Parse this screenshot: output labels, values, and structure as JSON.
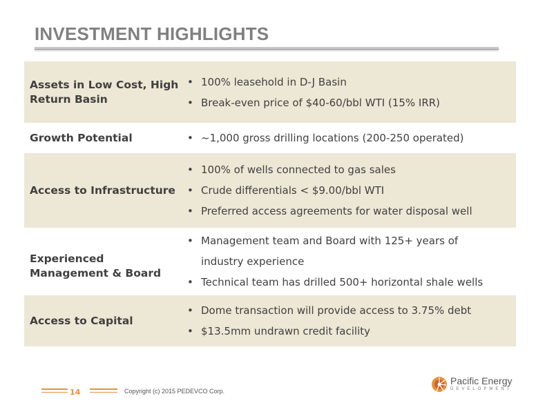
{
  "title": "INVESTMENT HIGHLIGHTS",
  "rows": [
    {
      "label": "Assets in Low Cost, High Return Basin",
      "bullets": [
        "100% leasehold in D-J Basin",
        "Break-even price of $40-60/bbl WTI (15% IRR)"
      ]
    },
    {
      "label": "Growth Potential",
      "bullets": [
        "~1,000 gross drilling locations (200-250 operated)"
      ]
    },
    {
      "label": "Access to Infrastructure",
      "bullets": [
        "100% of wells connected to gas sales",
        "Crude differentials < $9.00/bbl WTI",
        "Preferred access agreements for water disposal well"
      ]
    },
    {
      "label": "Experienced Management & Board",
      "bullets": [
        "Management team and Board with 125+ years of industry experience",
        "Technical team has drilled 500+ horizontal shale wells"
      ]
    },
    {
      "label": "Access to Capital",
      "bullets": [
        "Dome transaction will provide access to 3.75% debt",
        "$13.5mm undrawn credit facility"
      ]
    }
  ],
  "bullet_char": "•",
  "footer": {
    "page_number": "14",
    "copyright": "Copyright (c) 2015 PEDEVCO Corp.",
    "logo_name": "Pacific Energy",
    "logo_sub": "DEVELOPMENT"
  },
  "colors": {
    "accent": "#e8923a",
    "row_shade": "#ede7d5",
    "title": "#808080"
  }
}
